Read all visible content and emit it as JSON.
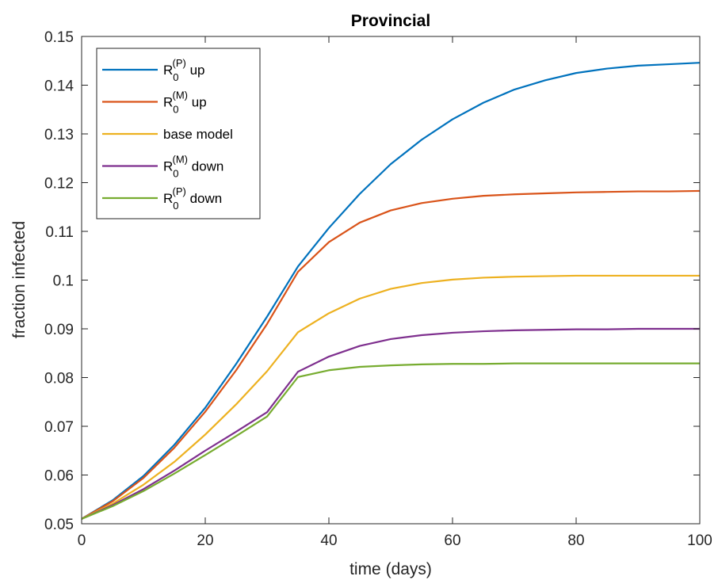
{
  "chart_data": {
    "type": "line",
    "title": "Provincial",
    "xlabel": "time (days)",
    "ylabel": "fraction infected",
    "xlim": [
      0,
      100
    ],
    "ylim": [
      0.05,
      0.15
    ],
    "x_ticks": [
      0,
      20,
      40,
      60,
      80,
      100
    ],
    "x_tick_labels": [
      "0",
      "20",
      "40",
      "60",
      "80",
      "100"
    ],
    "y_ticks": [
      0.05,
      0.06,
      0.07,
      0.08,
      0.09,
      0.1,
      0.11,
      0.12,
      0.13,
      0.14,
      0.15
    ],
    "y_tick_labels": [
      "0.05",
      "0.06",
      "0.07",
      "0.08",
      "0.09",
      "0.1",
      "0.11",
      "0.12",
      "0.13",
      "0.14",
      "0.15"
    ],
    "grid": false,
    "legend_position": "top-left",
    "x": [
      0,
      5,
      10,
      15,
      20,
      25,
      30,
      35,
      40,
      45,
      50,
      55,
      60,
      65,
      70,
      75,
      80,
      85,
      90,
      95,
      100
    ],
    "series": [
      {
        "name": "R0(P) up",
        "legend": {
          "base": "R",
          "sub": "0",
          "sup": "(P)",
          "suffix": " up"
        },
        "color": "#0072BD",
        "values": [
          0.051,
          0.0548,
          0.0598,
          0.0662,
          0.0738,
          0.0828,
          0.0925,
          0.1028,
          0.1107,
          0.1177,
          0.1238,
          0.1288,
          0.133,
          0.1364,
          0.1391,
          0.141,
          0.1425,
          0.1434,
          0.144,
          0.1443,
          0.1446
        ]
      },
      {
        "name": "R0(M) up",
        "legend": {
          "base": "R",
          "sub": "0",
          "sup": "(M)",
          "suffix": " up"
        },
        "color": "#D95319",
        "values": [
          0.051,
          0.0546,
          0.0594,
          0.0656,
          0.073,
          0.0815,
          0.091,
          0.1017,
          0.1078,
          0.1118,
          0.1143,
          0.1158,
          0.1167,
          0.1173,
          0.1176,
          0.1178,
          0.118,
          0.1181,
          0.1182,
          0.1182,
          0.1183
        ]
      },
      {
        "name": "base model",
        "legend": {
          "base": "base model",
          "sub": "",
          "sup": "",
          "suffix": ""
        },
        "color": "#EDB120",
        "values": [
          0.051,
          0.0541,
          0.058,
          0.0627,
          0.0683,
          0.0745,
          0.0813,
          0.0893,
          0.0932,
          0.0962,
          0.0982,
          0.0994,
          0.1001,
          0.1005,
          0.1007,
          0.1008,
          0.1009,
          0.1009,
          0.1009,
          0.1009,
          0.1009
        ]
      },
      {
        "name": "R0(M) down",
        "legend": {
          "base": "R",
          "sub": "0",
          "sup": "(M)",
          "suffix": " down"
        },
        "color": "#7E2F8E",
        "values": [
          0.051,
          0.0538,
          0.0571,
          0.0609,
          0.065,
          0.0689,
          0.0729,
          0.0812,
          0.0843,
          0.0865,
          0.0879,
          0.0887,
          0.0892,
          0.0895,
          0.0897,
          0.0898,
          0.0899,
          0.0899,
          0.09,
          0.09,
          0.09
        ]
      },
      {
        "name": "R0(P) down",
        "legend": {
          "base": "R",
          "sub": "0",
          "sup": "(P)",
          "suffix": " down"
        },
        "color": "#77AC30",
        "values": [
          0.051,
          0.0536,
          0.0567,
          0.0603,
          0.0641,
          0.068,
          0.072,
          0.0801,
          0.0815,
          0.0822,
          0.0825,
          0.0827,
          0.0828,
          0.0828,
          0.0829,
          0.0829,
          0.0829,
          0.0829,
          0.0829,
          0.0829,
          0.0829
        ]
      }
    ]
  }
}
